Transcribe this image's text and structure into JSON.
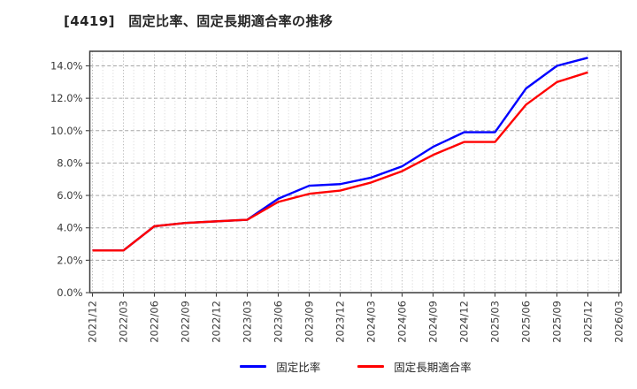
{
  "page": {
    "title": "[4419]　固定比率、固定長期適合率の推移"
  },
  "chart_data": {
    "type": "line",
    "title": "[4419]　固定比率、固定長期適合率の推移",
    "x_tick_labels": [
      "2021/12",
      "2022/03",
      "2022/06",
      "2022/09",
      "2022/12",
      "2023/03",
      "2023/06",
      "2023/09",
      "2023/12",
      "2024/03",
      "2024/06",
      "2024/09",
      "2024/12",
      "2025/03",
      "2025/06",
      "2025/09",
      "2025/12",
      "2026/03"
    ],
    "y_tick_values": [
      0,
      2,
      4,
      6,
      8,
      10,
      12,
      14
    ],
    "y_tick_labels": [
      "0.0%",
      "2.0%",
      "4.0%",
      "6.0%",
      "8.0%",
      "10.0%",
      "12.0%",
      "14.0%"
    ],
    "ylim": [
      0,
      14.9
    ],
    "grid": true,
    "legend_position": "bottom-center",
    "colors": {
      "series1": "#0000ff",
      "series2": "#ff0000",
      "grid_major_h": "#a6a6a6",
      "grid_major_v": "#b8b8b8",
      "grid_minor_v": "#dcdcdc",
      "spine": "#3c3c3c",
      "tick_text": "#3a3a3a",
      "title_text": "#262626"
    },
    "series": [
      {
        "name": "固定比率",
        "color": "#0000ff",
        "values": [
          2.6,
          2.6,
          4.1,
          4.3,
          4.4,
          4.5,
          5.8,
          6.6,
          6.7,
          7.1,
          7.8,
          9.0,
          9.9,
          9.9,
          12.6,
          14.0,
          14.5
        ]
      },
      {
        "name": "固定長期適合率",
        "color": "#ff0000",
        "values": [
          2.6,
          2.6,
          4.1,
          4.3,
          4.4,
          4.5,
          5.6,
          6.1,
          6.3,
          6.8,
          7.5,
          8.5,
          9.3,
          9.3,
          11.6,
          13.0,
          13.6
        ]
      }
    ]
  }
}
